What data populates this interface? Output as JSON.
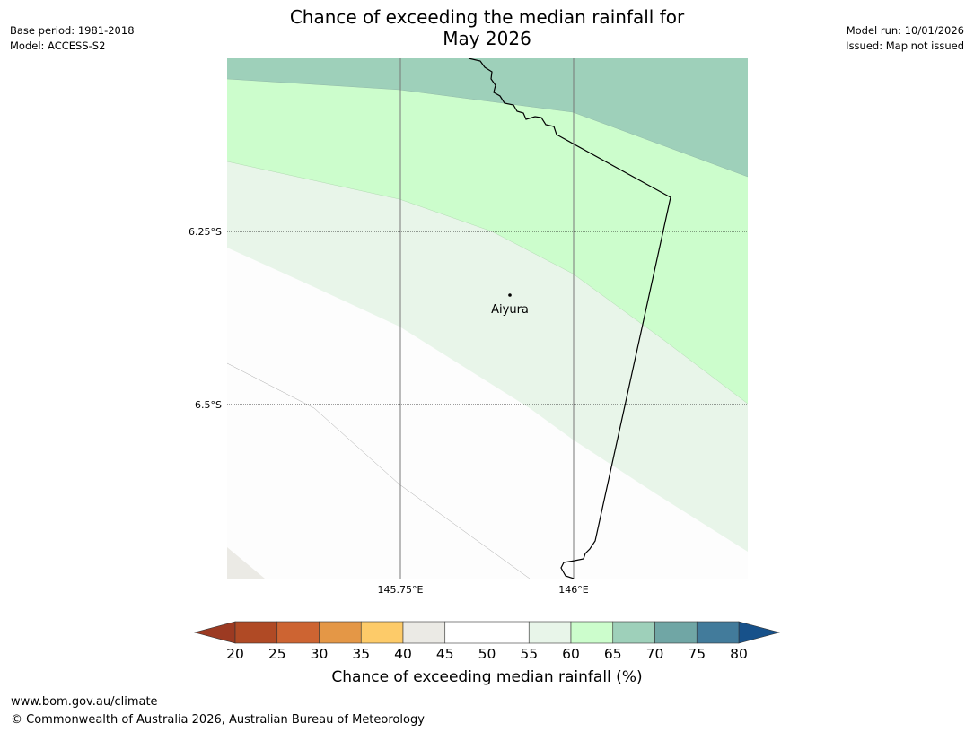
{
  "header": {
    "base_period": "Base period: 1981-2018",
    "model": "Model: ACCESS-S2",
    "model_run": "Model run: 10/01/2026",
    "issued": "Issued: Map not issued",
    "title_line1": "Chance of exceeding the median rainfall for",
    "title_line2": "May 2026"
  },
  "map": {
    "place": "Aiyura",
    "lat_labels": [
      "6.25°S",
      "6.5°S"
    ],
    "lon_labels": [
      "145.75°E",
      "146°E"
    ],
    "colors": {
      "c40": "#ebeae5",
      "c45": "#fdfdfd",
      "c55": "#e8f5e9",
      "c60": "#ccfdcc",
      "c65": "#9ed0ba"
    }
  },
  "colorbar": {
    "title": "Chance of exceeding median rainfall (%)",
    "ticks": [
      "20",
      "25",
      "30",
      "35",
      "40",
      "45",
      "50",
      "55",
      "60",
      "65",
      "70",
      "75",
      "80"
    ],
    "under_color": "#9c3a22",
    "over_color": "#17518a",
    "colors": [
      "#b04a25",
      "#cd6432",
      "#e49746",
      "#fdcb69",
      "#ebeae5",
      "#ffffff",
      "#ffffff",
      "#e8f5e9",
      "#ccfdcc",
      "#9ed0ba",
      "#70a6a5",
      "#427b9b"
    ]
  },
  "footer": {
    "url": "www.bom.gov.au/climate",
    "copyright": "© Commonwealth of Australia 2026, Australian Bureau of Meteorology"
  }
}
